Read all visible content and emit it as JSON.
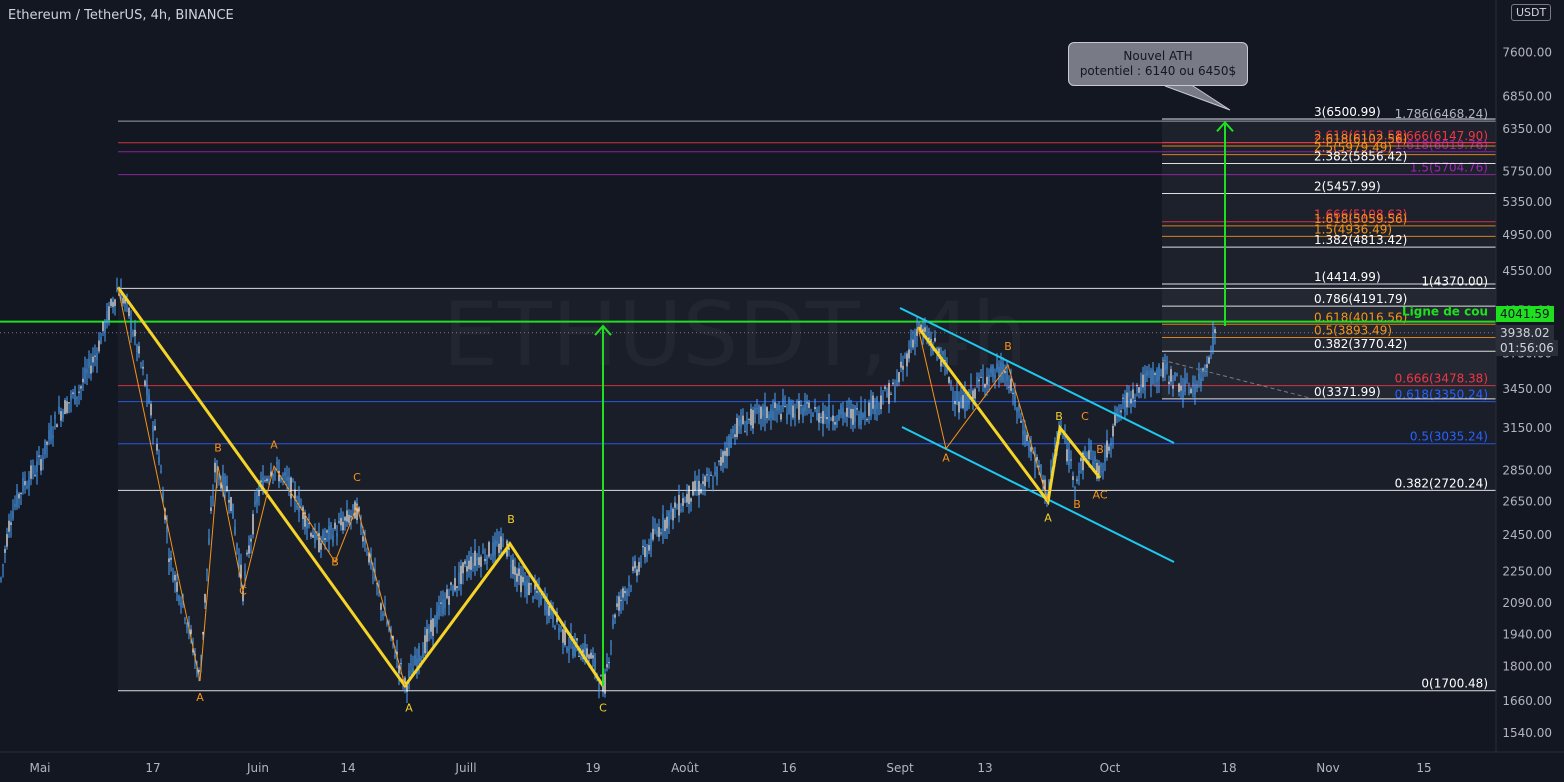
{
  "header": {
    "title": "Ethereum / TetherUS, 4h, BINANCE",
    "currency": "USDT"
  },
  "annotation": {
    "line1": "Nouvel ATH",
    "line2": "potentiel : 6140 ou 6450$"
  },
  "neckline_label": "Ligne de cou",
  "price_tags": {
    "neckline": "4041.59",
    "last": "3938.02",
    "countdown": "01:56:06"
  },
  "colors": {
    "up": "#2962ff",
    "candle": "#4ea6ff",
    "wave": "#f5d327",
    "subwave": "#f7931a",
    "channel": "#1fc8f0",
    "arrow": "#1fe01f",
    "neck": "#1fe01f"
  },
  "chart_data": {
    "type": "candlestick",
    "symbol": "ETHUSDT",
    "timeframe": "4h",
    "ylim": [
      1500,
      8200
    ],
    "y_ticks": [
      1540,
      1660,
      1800,
      1940,
      2090,
      2250,
      2450,
      2650,
      2850,
      3150,
      3450,
      3750,
      4150,
      4550,
      4950,
      5350,
      5750,
      6350,
      6850,
      7600
    ],
    "x_ticks": [
      {
        "label": "Mai",
        "x": 40
      },
      {
        "label": "17",
        "x": 153
      },
      {
        "label": "Juin",
        "x": 258
      },
      {
        "label": "14",
        "x": 348
      },
      {
        "label": "Juill",
        "x": 466
      },
      {
        "label": "19",
        "x": 593
      },
      {
        "label": "Août",
        "x": 685
      },
      {
        "label": "16",
        "x": 789
      },
      {
        "label": "Sept",
        "x": 900
      },
      {
        "label": "13",
        "x": 985
      },
      {
        "label": "Oct",
        "x": 1110
      },
      {
        "label": "18",
        "x": 1229
      },
      {
        "label": "Nov",
        "x": 1328
      },
      {
        "label": "15",
        "x": 1424
      }
    ],
    "price_path": [
      [
        0,
        2170
      ],
      [
        10,
        2550
      ],
      [
        22,
        2740
      ],
      [
        40,
        2900
      ],
      [
        58,
        3250
      ],
      [
        80,
        3450
      ],
      [
        96,
        3750
      ],
      [
        110,
        4150
      ],
      [
        118,
        4380
      ],
      [
        128,
        4150
      ],
      [
        145,
        3500
      ],
      [
        158,
        3000
      ],
      [
        170,
        2300
      ],
      [
        185,
        2050
      ],
      [
        200,
        1740
      ],
      [
        215,
        2850
      ],
      [
        230,
        2700
      ],
      [
        243,
        2150
      ],
      [
        258,
        2700
      ],
      [
        272,
        2880
      ],
      [
        290,
        2750
      ],
      [
        318,
        2400
      ],
      [
        340,
        2500
      ],
      [
        357,
        2600
      ],
      [
        380,
        2100
      ],
      [
        405,
        1720
      ],
      [
        425,
        1900
      ],
      [
        445,
        2100
      ],
      [
        470,
        2300
      ],
      [
        505,
        2400
      ],
      [
        520,
        2200
      ],
      [
        545,
        2100
      ],
      [
        568,
        1900
      ],
      [
        590,
        1850
      ],
      [
        604,
        1700
      ],
      [
        615,
        2050
      ],
      [
        640,
        2300
      ],
      [
        660,
        2500
      ],
      [
        690,
        2700
      ],
      [
        715,
        2800
      ],
      [
        735,
        3150
      ],
      [
        760,
        3250
      ],
      [
        790,
        3300
      ],
      [
        820,
        3250
      ],
      [
        860,
        3250
      ],
      [
        895,
        3450
      ],
      [
        918,
        3990
      ],
      [
        940,
        3750
      ],
      [
        960,
        3300
      ],
      [
        985,
        3550
      ],
      [
        1005,
        3600
      ],
      [
        1025,
        3100
      ],
      [
        1048,
        2700
      ],
      [
        1060,
        3150
      ],
      [
        1075,
        2800
      ],
      [
        1090,
        3000
      ],
      [
        1100,
        2800
      ],
      [
        1115,
        3200
      ],
      [
        1130,
        3400
      ],
      [
        1150,
        3550
      ],
      [
        1165,
        3600
      ],
      [
        1185,
        3450
      ],
      [
        1200,
        3500
      ],
      [
        1215,
        3920
      ]
    ],
    "neckline": 4041.59,
    "last_price": 3938.02,
    "fib_left": [
      {
        "label": "1(4370.00)",
        "value": 4370,
        "color": "#ffffff"
      },
      {
        "label": "0.666(3478.38)",
        "value": 3478.38,
        "color": "#f23645"
      },
      {
        "label": "0.618(3350.24)",
        "value": 3350.24,
        "color": "#2962ff"
      },
      {
        "label": "0.5(3035.24)",
        "value": 3035.24,
        "color": "#2962ff"
      },
      {
        "label": "0.382(2720.24)",
        "value": 2720.24,
        "color": "#ffffff"
      },
      {
        "label": "0(1700.48)",
        "value": 1700.48,
        "color": "#ffffff"
      },
      {
        "label": "1.786(6468.24)",
        "value": 6468.24,
        "color": "#b2b5be"
      },
      {
        "label": "1.666(6147.90)",
        "value": 6147.9,
        "color": "#f23645"
      },
      {
        "label": "1.618(6019.76)",
        "value": 6019.76,
        "color": "#9c27b0"
      },
      {
        "label": "1.5(5704.76)",
        "value": 5704.76,
        "color": "#9c27b0"
      }
    ],
    "fib_right": [
      {
        "label": "3(6500.99)",
        "value": 6500.99,
        "color": "#ffffff"
      },
      {
        "label": "2.618(6152.58)",
        "value": 6152.58,
        "color": "#f23645"
      },
      {
        "label": "2.618(6102.56)",
        "value": 6102.56,
        "color": "#f7931a"
      },
      {
        "label": "2.5(5979.49)",
        "value": 5979.49,
        "color": "#f7931a"
      },
      {
        "label": "2.382(5856.42)",
        "value": 5856.42,
        "color": "#ffffff"
      },
      {
        "label": "2(5457.99)",
        "value": 5457.99,
        "color": "#ffffff"
      },
      {
        "label": "1.666(5108.63)",
        "value": 5108.63,
        "color": "#f23645"
      },
      {
        "label": "1.618(5059.56)",
        "value": 5059.56,
        "color": "#f7931a"
      },
      {
        "label": "1.5(4936.49)",
        "value": 4936.49,
        "color": "#f7931a"
      },
      {
        "label": "1.382(4813.42)",
        "value": 4813.42,
        "color": "#ffffff"
      },
      {
        "label": "1(4414.99)",
        "value": 4414.99,
        "color": "#ffffff"
      },
      {
        "label": "0.786(4191.79)",
        "value": 4191.79,
        "color": "#ffffff"
      },
      {
        "label": "0.618(4016.56)",
        "value": 4016.56,
        "color": "#f7931a"
      },
      {
        "label": "0.5(3893.49)",
        "value": 3893.49,
        "color": "#f7931a"
      },
      {
        "label": "0.382(3770.42)",
        "value": 3770.42,
        "color": "#ffffff"
      },
      {
        "label": "0(3371.99)",
        "value": 3371.99,
        "color": "#ffffff"
      }
    ],
    "waves_main": [
      [
        118,
        4380
      ],
      [
        405,
        1720
      ],
      [
        510,
        2400
      ],
      [
        603,
        1720
      ]
    ],
    "waves_right": [
      [
        918,
        3990
      ],
      [
        1048,
        2650
      ],
      [
        1060,
        3150
      ],
      [
        1100,
        2800
      ]
    ],
    "wave_labels": [
      {
        "t": "A",
        "x": 200,
        "y": 1660,
        "c": "#f7931a"
      },
      {
        "t": "B",
        "x": 218,
        "y": 2980,
        "c": "#f7931a"
      },
      {
        "t": "C",
        "x": 243,
        "y": 2130,
        "c": "#f7931a"
      },
      {
        "t": "A",
        "x": 274,
        "y": 3000,
        "c": "#f7931a"
      },
      {
        "t": "B",
        "x": 335,
        "y": 2280,
        "c": "#f7931a"
      },
      {
        "t": "C",
        "x": 357,
        "y": 2780,
        "c": "#f7931a"
      },
      {
        "t": "A",
        "x": 409,
        "y": 1620,
        "c": "#f5d327"
      },
      {
        "t": "B",
        "x": 511,
        "y": 2520,
        "c": "#f5d327"
      },
      {
        "t": "C",
        "x": 603,
        "y": 1620,
        "c": "#f5d327"
      },
      {
        "t": "A",
        "x": 946,
        "y": 2910,
        "c": "#f7931a"
      },
      {
        "t": "B",
        "x": 1008,
        "y": 3780,
        "c": "#f7931a"
      },
      {
        "t": "B",
        "x": 1059,
        "y": 3210,
        "c": "#f5d327"
      },
      {
        "t": "C",
        "x": 1085,
        "y": 3210,
        "c": "#f7931a"
      },
      {
        "t": "B",
        "x": 1100,
        "y": 2970,
        "c": "#f7931a"
      },
      {
        "t": "A",
        "x": 1048,
        "y": 2530,
        "c": "#f5d327"
      },
      {
        "t": "B",
        "x": 1077,
        "y": 2610,
        "c": "#f7931a"
      },
      {
        "t": "AC",
        "x": 1100,
        "y": 2670,
        "c": "#f7931a"
      }
    ]
  }
}
